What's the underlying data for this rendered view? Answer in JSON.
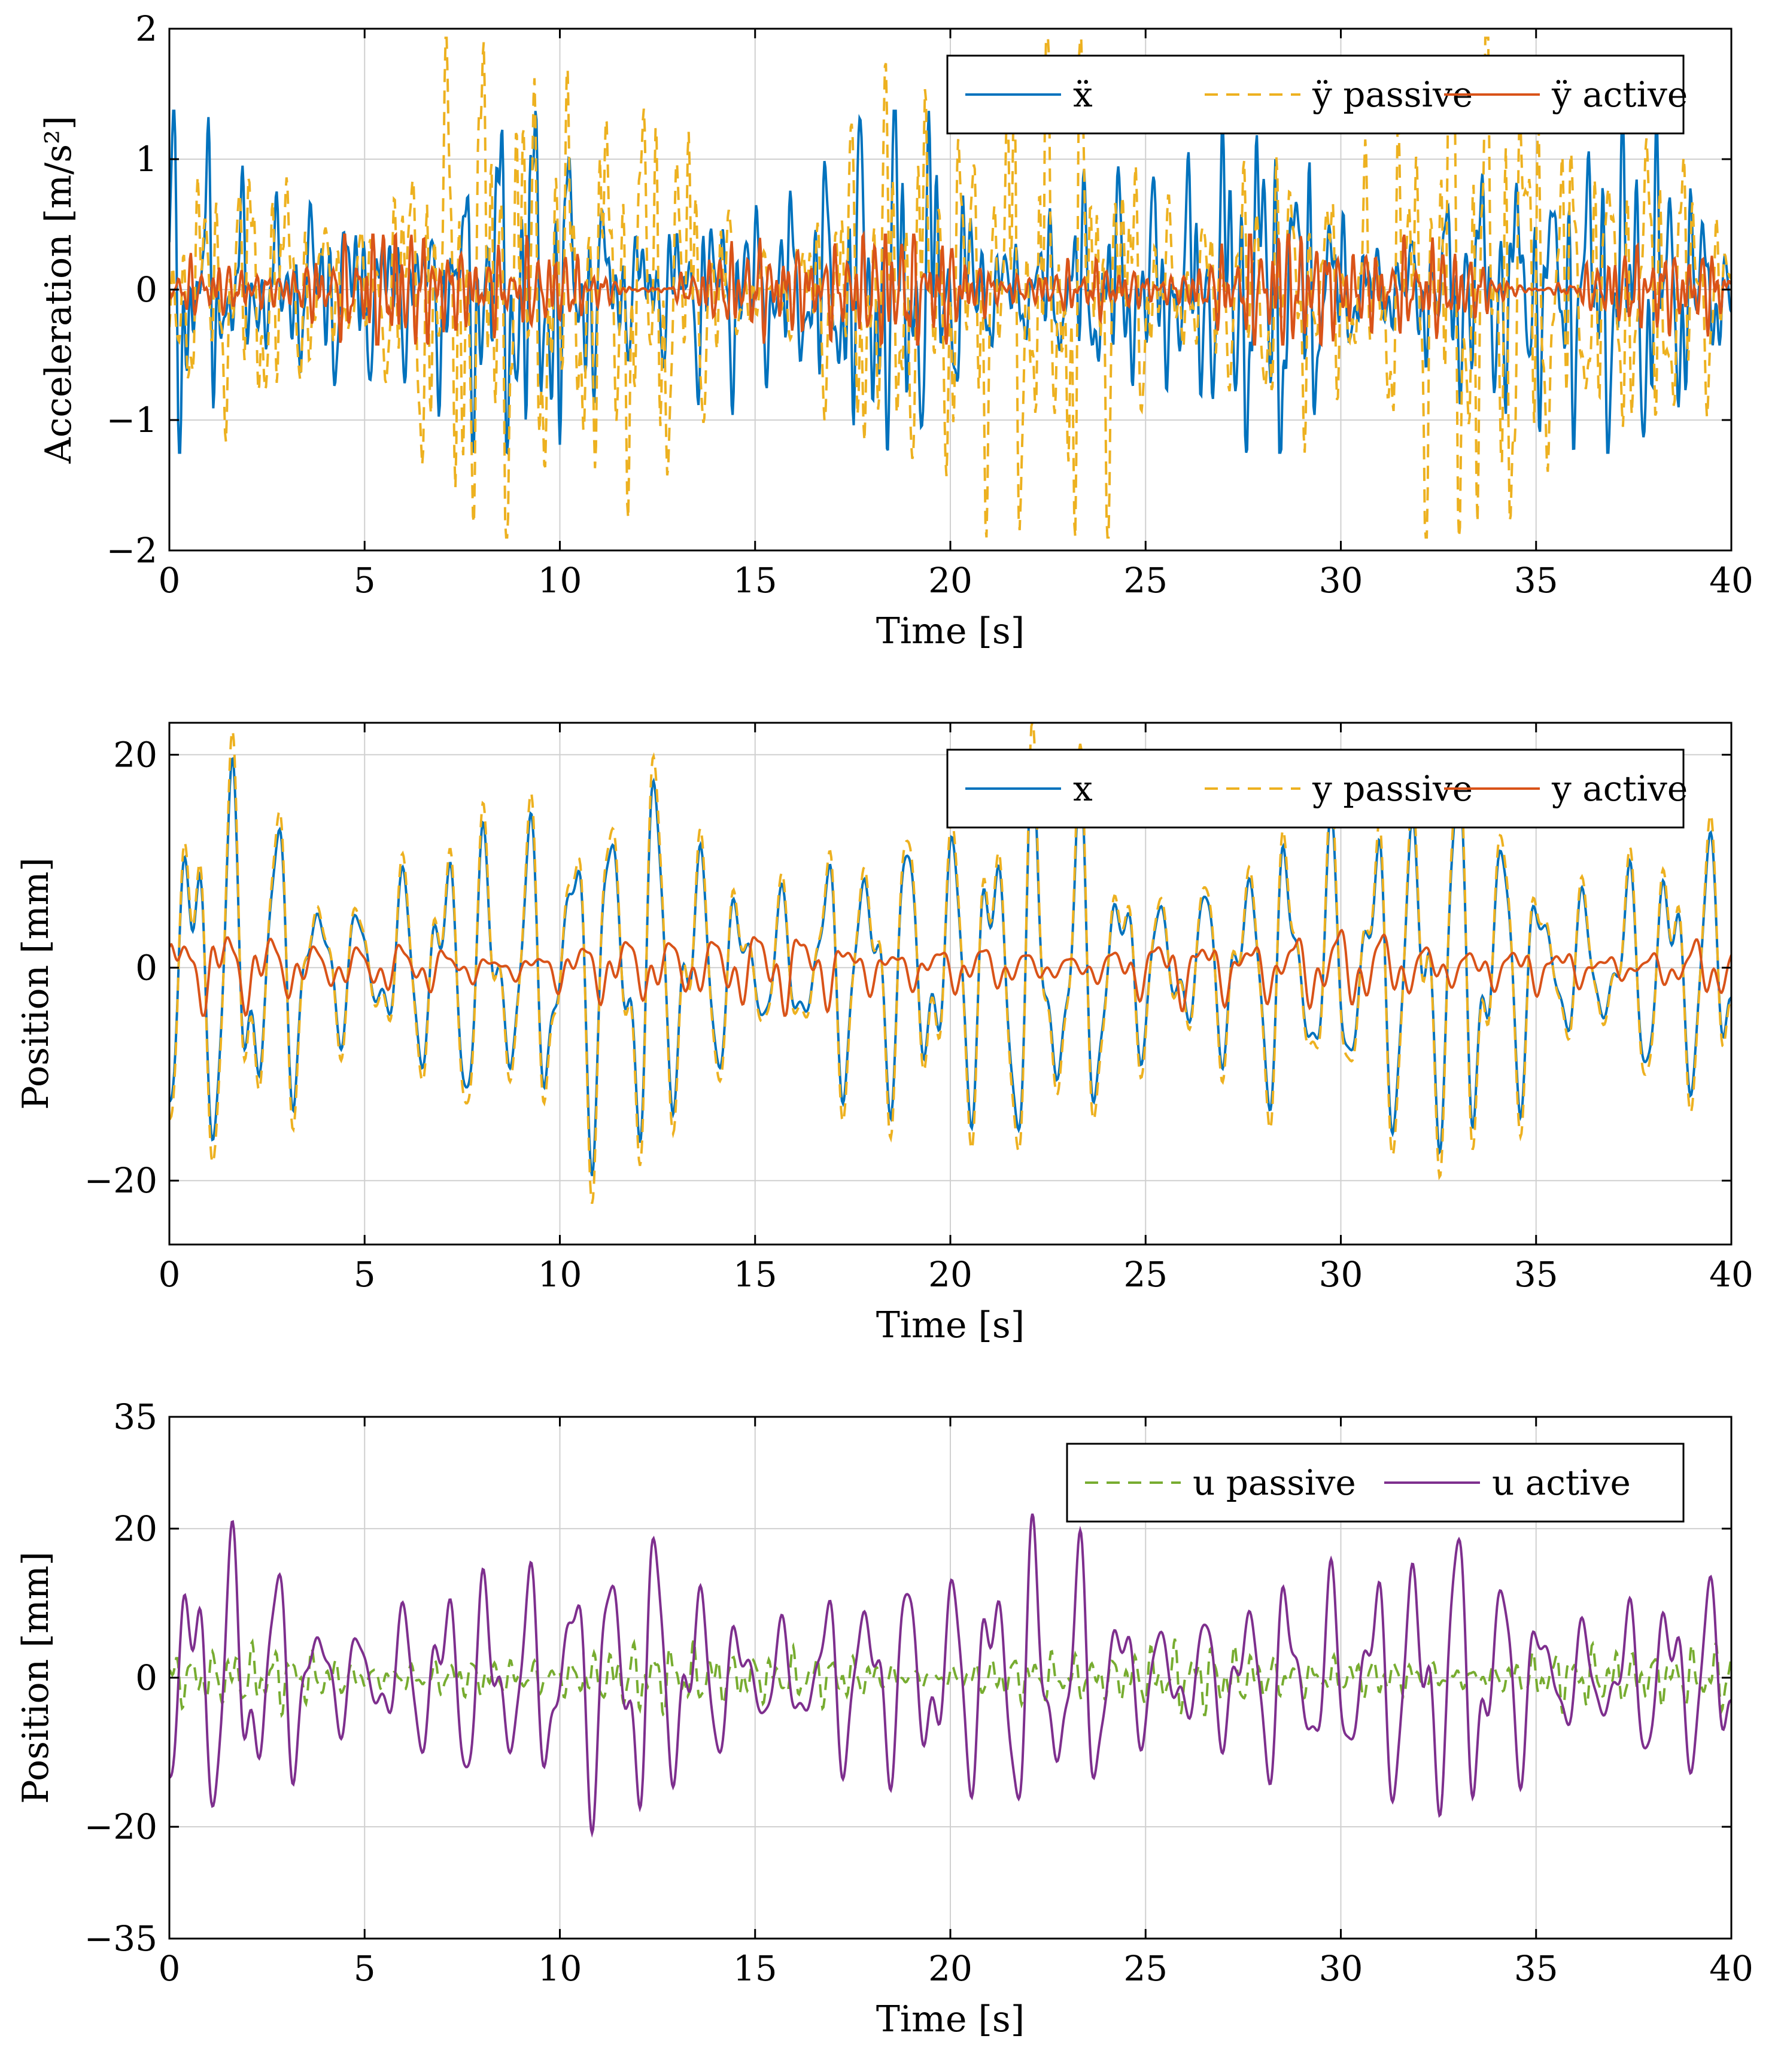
{
  "chart_data": [
    {
      "type": "line",
      "title": "",
      "xlabel": "Time [s]",
      "ylabel": "Acceleration [m/s²]",
      "xlim": [
        0,
        40
      ],
      "ylim": [
        -2,
        2
      ],
      "xticks": [
        0,
        5,
        10,
        15,
        20,
        25,
        30,
        35,
        40
      ],
      "yticks": [
        -2,
        -1,
        0,
        1,
        2
      ],
      "ytick_labels": [
        "−2",
        "−1",
        "0",
        "1",
        "2"
      ],
      "legend": "top-right",
      "series": [
        {
          "name": "ẍ",
          "color": "#0072BD",
          "style": "solid",
          "seed": 11,
          "amp": 0.38,
          "freqs": [
            1.1,
            2.3,
            3.4,
            4.7,
            6.1
          ],
          "weights": [
            1.0,
            0.8,
            0.7,
            0.6,
            0.4
          ],
          "env": 0.45,
          "clip": [
            -1.25,
            1.37
          ]
        },
        {
          "name": "ÿ passive",
          "color": "#EDB120",
          "style": "dashed",
          "seed": 23,
          "amp": 0.55,
          "freqs": [
            1.0,
            2.2,
            3.5,
            4.9,
            6.3
          ],
          "weights": [
            1.0,
            0.9,
            0.7,
            0.5,
            0.4
          ],
          "env": 0.5,
          "clip": [
            -1.9,
            1.93
          ]
        },
        {
          "name": "ÿ active",
          "color": "#D95319",
          "style": "solid",
          "seed": 37,
          "amp": 0.13,
          "freqs": [
            3.1,
            4.2,
            5.6,
            7.0
          ],
          "weights": [
            1.0,
            0.8,
            0.7,
            0.5
          ],
          "env": 0.6,
          "clip": [
            -0.42,
            0.42
          ]
        }
      ]
    },
    {
      "type": "line",
      "title": "",
      "xlabel": "Time [s]",
      "ylabel": "Position [mm]",
      "xlim": [
        0,
        40
      ],
      "ylim": [
        -26,
        23
      ],
      "xticks": [
        0,
        5,
        10,
        15,
        20,
        25,
        30,
        35,
        40
      ],
      "yticks": [
        -20,
        0,
        20
      ],
      "ytick_labels": [
        "−20",
        "0",
        "20"
      ],
      "legend": "top-right",
      "series": [
        {
          "name": "x",
          "color": "#0072BD",
          "style": "solid",
          "seed": 5,
          "amp": 9.0,
          "freqs": [
            0.95,
            1.6,
            2.3
          ],
          "weights": [
            1.0,
            0.45,
            0.25
          ],
          "env": 0.35,
          "clip": [
            -23,
            20.3
          ]
        },
        {
          "name": "y passive",
          "color": "#EDB120",
          "style": "dashed",
          "seed": 5,
          "amp": 10.2,
          "freqs": [
            0.95,
            1.6,
            2.3
          ],
          "weights": [
            1.0,
            0.45,
            0.25
          ],
          "env": 0.35,
          "clip": [
            -26,
            23
          ]
        },
        {
          "name": "y active",
          "color": "#D95319",
          "style": "solid",
          "seed": 41,
          "amp": 1.6,
          "freqs": [
            0.9,
            1.8,
            2.7
          ],
          "weights": [
            1.0,
            0.6,
            0.4
          ],
          "env": 0.4,
          "clip": [
            -4.5,
            4.0
          ]
        }
      ]
    },
    {
      "type": "line",
      "title": "",
      "xlabel": "Time [s]",
      "ylabel": "Position [mm]",
      "xlim": [
        0,
        40
      ],
      "ylim": [
        -35,
        35
      ],
      "xticks": [
        0,
        5,
        10,
        15,
        20,
        25,
        30,
        35,
        40
      ],
      "yticks": [
        -35,
        -20,
        0,
        20,
        35
      ],
      "ytick_labels": [
        "−35",
        "−20",
        "0",
        "20",
        "35"
      ],
      "legend": "top-right",
      "series": [
        {
          "name": "u passive",
          "color": "#77AC30",
          "style": "dashed",
          "seed": 53,
          "amp": 1.7,
          "freqs": [
            2.0,
            3.3,
            4.6
          ],
          "weights": [
            1.0,
            0.7,
            0.5
          ],
          "env": 0.4,
          "clip": [
            -5,
            5.5
          ]
        },
        {
          "name": "u active",
          "color": "#7E2F8E",
          "style": "solid",
          "seed": 5,
          "amp": 9.6,
          "freqs": [
            0.95,
            1.6,
            2.3
          ],
          "weights": [
            1.0,
            0.45,
            0.25
          ],
          "env": 0.35,
          "clip": [
            -23,
            25
          ]
        }
      ]
    }
  ]
}
